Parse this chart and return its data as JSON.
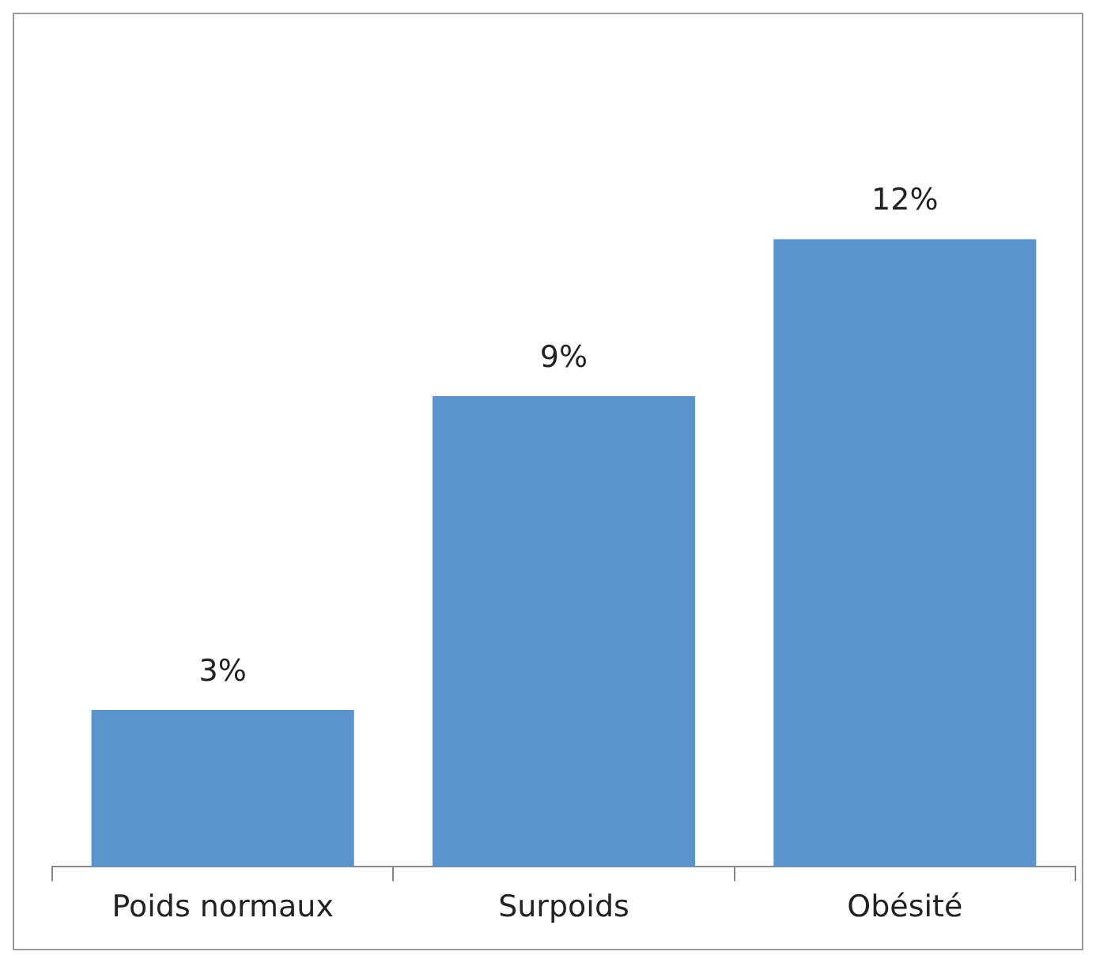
{
  "chart_data": {
    "type": "bar",
    "categories": [
      "Poids normaux",
      "Surpoids",
      "Obésité"
    ],
    "values": [
      3,
      9,
      12
    ],
    "value_labels": [
      "3%",
      "9%",
      "12%"
    ],
    "color": "#5b93cd",
    "grid": false,
    "legend": false,
    "tick_labels": "x"
  }
}
